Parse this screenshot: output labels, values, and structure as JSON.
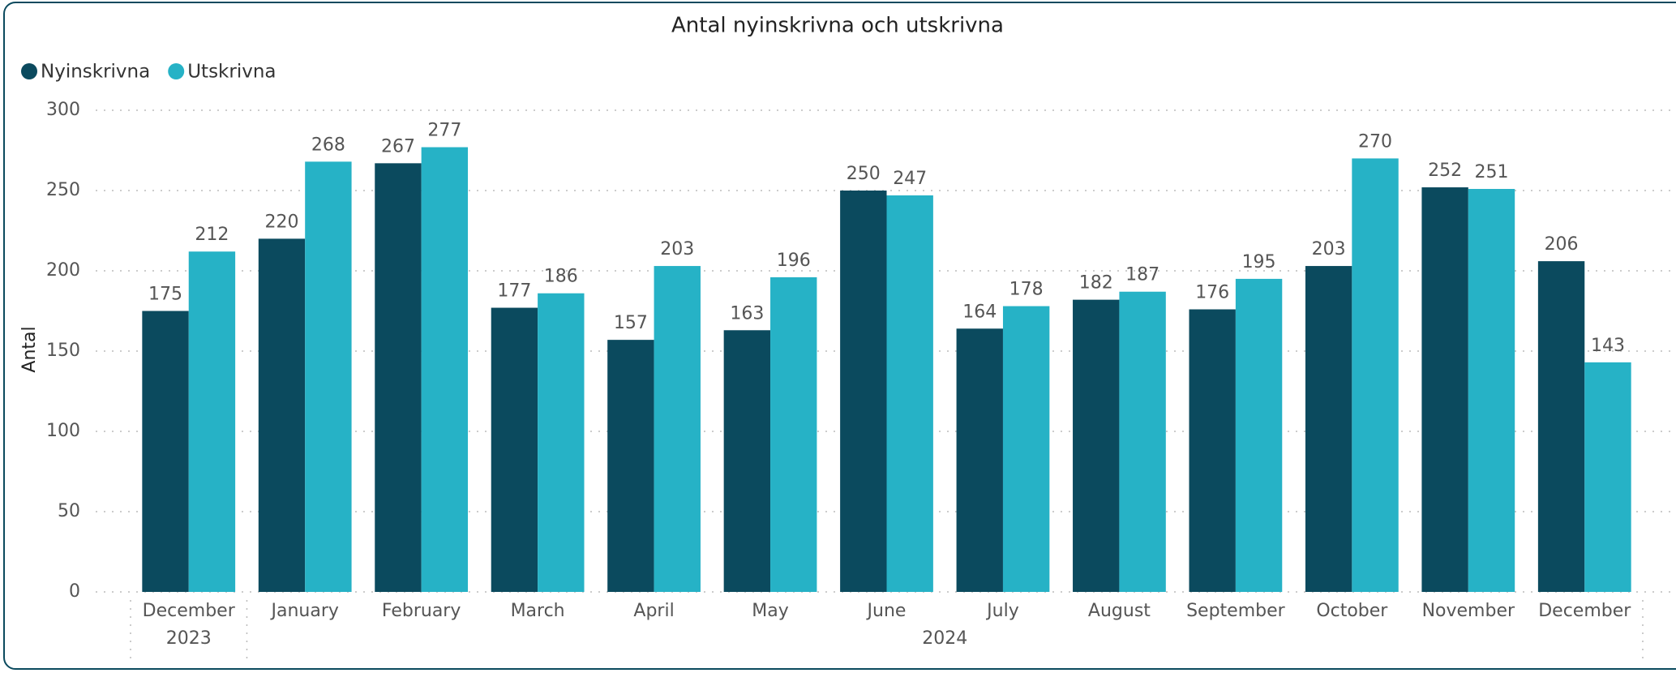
{
  "chart_data": {
    "type": "bar",
    "title": "Antal nyinskrivna och utskrivna",
    "y_label": "Antal",
    "categories": [
      "December",
      "January",
      "February",
      "March",
      "April",
      "May",
      "June",
      "July",
      "August",
      "September",
      "October",
      "November",
      "December"
    ],
    "year_groups": [
      {
        "label": "2023",
        "size": 1
      },
      {
        "label": "2024",
        "size": 12
      }
    ],
    "series": [
      {
        "name": "Nyinskrivna",
        "color": "#0b4a5e",
        "values": [
          175,
          220,
          267,
          177,
          157,
          163,
          250,
          164,
          182,
          176,
          203,
          252,
          206
        ]
      },
      {
        "name": "Utskrivna",
        "color": "#26b2c6",
        "values": [
          212,
          268,
          277,
          186,
          203,
          196,
          247,
          178,
          187,
          195,
          270,
          251,
          143
        ]
      }
    ],
    "ylim": [
      0,
      300
    ],
    "yticks": [
      0,
      50,
      100,
      150,
      200,
      250,
      300
    ],
    "grid": true,
    "legend": "top-left"
  }
}
